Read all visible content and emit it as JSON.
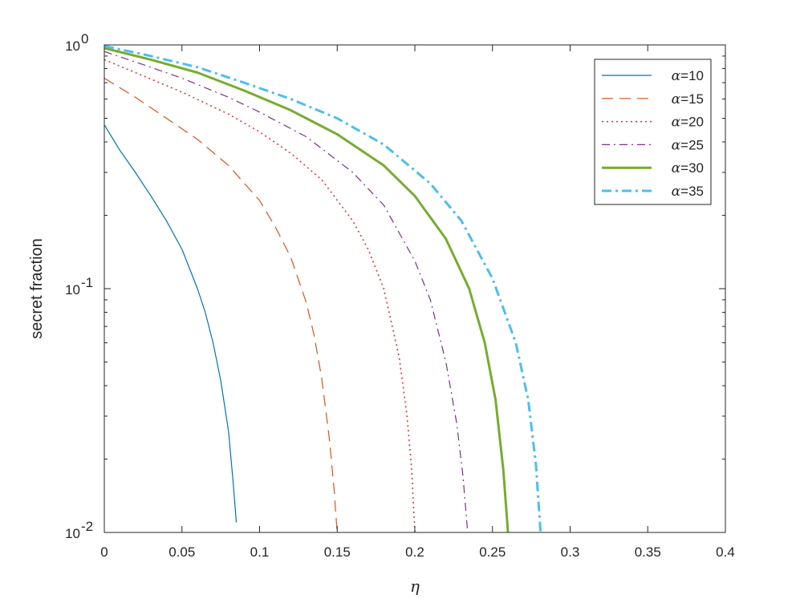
{
  "chart_data": {
    "type": "line",
    "xlabel": "η",
    "ylabel": "secret fraction",
    "xlim": [
      0,
      0.4
    ],
    "ylim": [
      0.01,
      1
    ],
    "yscale": "log",
    "grid": false,
    "legend_position": "top-right",
    "x_ticks": [
      "0",
      "0.05",
      "0.1",
      "0.15",
      "0.2",
      "0.25",
      "0.3",
      "0.35",
      "0.4"
    ],
    "y_ticks": [
      {
        "base": "10",
        "exp": "0"
      },
      {
        "base": "10",
        "exp": "-1"
      },
      {
        "base": "10",
        "exp": "-2"
      }
    ],
    "series": [
      {
        "name": "α=10",
        "legend_symbol": "α",
        "legend_value": "=10",
        "color": "#0072BD",
        "style": "solid",
        "x": [
          0,
          0.01,
          0.02,
          0.03,
          0.04,
          0.05,
          0.06,
          0.065,
          0.07,
          0.075,
          0.08,
          0.083,
          0.085
        ],
        "y": [
          0.47,
          0.37,
          0.3,
          0.24,
          0.19,
          0.145,
          0.1,
          0.08,
          0.06,
          0.042,
          0.026,
          0.016,
          0.011
        ]
      },
      {
        "name": "α=15",
        "legend_symbol": "α",
        "legend_value": "=15",
        "color": "#D95319",
        "style": "dashed",
        "x": [
          0,
          0.02,
          0.04,
          0.06,
          0.08,
          0.1,
          0.11,
          0.12,
          0.13,
          0.135,
          0.14,
          0.145,
          0.148,
          0.15
        ],
        "y": [
          0.73,
          0.61,
          0.5,
          0.41,
          0.32,
          0.23,
          0.18,
          0.135,
          0.088,
          0.065,
          0.043,
          0.024,
          0.015,
          0.01
        ]
      },
      {
        "name": "α=20",
        "legend_symbol": "α",
        "legend_value": "=20",
        "color": "#E8292E",
        "style": "dotted",
        "x": [
          0,
          0.02,
          0.05,
          0.08,
          0.1,
          0.12,
          0.14,
          0.16,
          0.17,
          0.18,
          0.19,
          0.195,
          0.198,
          0.2
        ],
        "y": [
          0.87,
          0.77,
          0.64,
          0.52,
          0.44,
          0.36,
          0.28,
          0.19,
          0.145,
          0.1,
          0.052,
          0.03,
          0.018,
          0.01
        ]
      },
      {
        "name": "α=25",
        "legend_symbol": "α",
        "legend_value": "=25",
        "color": "#7E2F8E",
        "style": "dashdot",
        "x": [
          0,
          0.025,
          0.05,
          0.08,
          0.1,
          0.13,
          0.16,
          0.18,
          0.2,
          0.21,
          0.22,
          0.227,
          0.231,
          0.234
        ],
        "y": [
          0.94,
          0.83,
          0.73,
          0.61,
          0.53,
          0.42,
          0.3,
          0.22,
          0.13,
          0.09,
          0.05,
          0.028,
          0.017,
          0.01
        ]
      },
      {
        "name": "α=30",
        "legend_symbol": "α",
        "legend_value": "=30",
        "color": "#77AC30",
        "style": "solid-thick",
        "x": [
          0,
          0.03,
          0.06,
          0.09,
          0.12,
          0.15,
          0.18,
          0.2,
          0.22,
          0.235,
          0.245,
          0.252,
          0.257,
          0.26
        ],
        "y": [
          0.97,
          0.87,
          0.77,
          0.65,
          0.54,
          0.43,
          0.32,
          0.24,
          0.16,
          0.1,
          0.06,
          0.035,
          0.018,
          0.01
        ]
      },
      {
        "name": "α=35",
        "legend_symbol": "α",
        "legend_value": "=35",
        "color": "#4DBEEE",
        "style": "dashdot-thick",
        "x": [
          0,
          0.03,
          0.06,
          0.09,
          0.12,
          0.15,
          0.18,
          0.21,
          0.23,
          0.25,
          0.265,
          0.273,
          0.278,
          0.281
        ],
        "y": [
          0.99,
          0.9,
          0.81,
          0.7,
          0.6,
          0.5,
          0.39,
          0.27,
          0.19,
          0.11,
          0.06,
          0.035,
          0.019,
          0.01
        ]
      }
    ]
  }
}
